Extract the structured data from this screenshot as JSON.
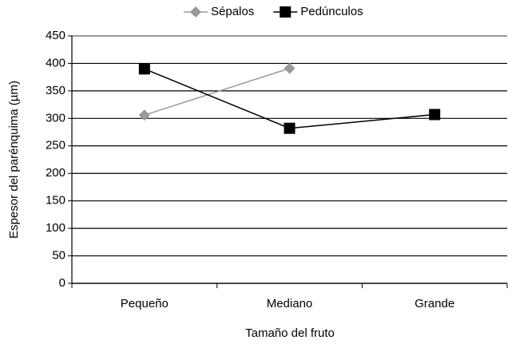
{
  "chart_data": {
    "type": "line",
    "x_label": "Tamaño del fruto",
    "y_label": "Espesor del parénquima (µm)",
    "categories": [
      "Pequeño",
      "Mediano",
      "Grande"
    ],
    "series": [
      {
        "name": "Sépalos",
        "color": "#999999",
        "marker": "diamond",
        "values": [
          306,
          391,
          null
        ]
      },
      {
        "name": "Pedúnculos",
        "color": "#000000",
        "marker": "square",
        "values": [
          390,
          282,
          307
        ]
      }
    ],
    "ylim": [
      0,
      450
    ],
    "yticks": [
      0,
      50,
      100,
      150,
      200,
      250,
      300,
      350,
      400,
      450
    ],
    "grid": true,
    "legend": "top"
  }
}
